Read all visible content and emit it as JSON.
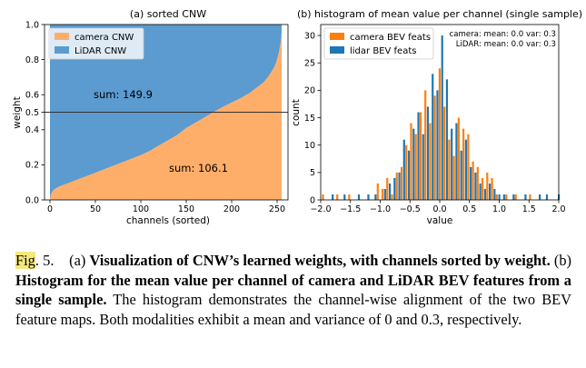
{
  "chart_data": [
    {
      "type": "area",
      "title": "(a) sorted CNW",
      "xlabel": "channels (sorted)",
      "ylabel": "weight",
      "xlim": [
        -6,
        262
      ],
      "ylim": [
        0,
        1.0
      ],
      "xticks": [
        "0",
        "50",
        "100",
        "150",
        "200",
        "250"
      ],
      "yticks": [
        "0.0",
        "0.2",
        "0.4",
        "0.5",
        "0.6",
        "0.8",
        "1.0"
      ],
      "series": [
        {
          "name": "camera CNW",
          "color": "#ffae6a",
          "x": [
            0,
            1,
            3,
            5,
            8,
            12,
            20,
            30,
            40,
            50,
            60,
            70,
            80,
            90,
            100,
            110,
            120,
            130,
            140,
            150,
            160,
            170,
            180,
            190,
            200,
            210,
            220,
            230,
            235,
            240,
            245,
            248,
            250,
            252,
            254,
            255
          ],
          "values": [
            0.0,
            0.03,
            0.05,
            0.06,
            0.07,
            0.08,
            0.095,
            0.115,
            0.135,
            0.155,
            0.175,
            0.195,
            0.215,
            0.235,
            0.255,
            0.28,
            0.31,
            0.34,
            0.37,
            0.41,
            0.44,
            0.47,
            0.5,
            0.53,
            0.555,
            0.58,
            0.61,
            0.65,
            0.67,
            0.7,
            0.74,
            0.77,
            0.8,
            0.84,
            0.9,
            0.95
          ]
        },
        {
          "name": "LiDAR CNW",
          "color": "#5b9bd0"
        }
      ],
      "hline": 0.5,
      "annotations": [
        "sum: 149.9",
        "sum: 106.1"
      ]
    },
    {
      "type": "bar",
      "title": "(b) histogram of mean value per channel (single sample)",
      "xlabel": "value",
      "ylabel": "count",
      "xlim": [
        -2.0,
        2.0
      ],
      "ylim": [
        0,
        32
      ],
      "xticks": [
        "−2.0",
        "−1.5",
        "−1.0",
        "−0.5",
        "0.0",
        "0.5",
        "1.0",
        "1.5",
        "2.0"
      ],
      "yticks": [
        "0",
        "5",
        "10",
        "15",
        "20",
        "25",
        "30"
      ],
      "bin_centers": [
        -1.94,
        -1.82,
        -1.7,
        -1.62,
        -1.5,
        -1.38,
        -1.22,
        -1.1,
        -1.02,
        -0.94,
        -0.86,
        -0.78,
        -0.7,
        -0.62,
        -0.54,
        -0.46,
        -0.38,
        -0.3,
        -0.22,
        -0.14,
        -0.06,
        0.02,
        0.1,
        0.18,
        0.26,
        0.34,
        0.42,
        0.5,
        0.58,
        0.66,
        0.74,
        0.82,
        0.9,
        0.98,
        1.06,
        1.14,
        1.22,
        1.3,
        1.42,
        1.54,
        1.66,
        1.78,
        1.98
      ],
      "series": [
        {
          "name": "camera BEV feats",
          "color": "#ff7f0e",
          "values": [
            1,
            0,
            1,
            0,
            1,
            0,
            0,
            0,
            3,
            2,
            4,
            1,
            5,
            6,
            10,
            14,
            12,
            16,
            20,
            14,
            19,
            24,
            17,
            11,
            8,
            15,
            13,
            12,
            7,
            6,
            4,
            5,
            4,
            1,
            0,
            1,
            0,
            1,
            0,
            1,
            0,
            0,
            0
          ]
        },
        {
          "name": "lidar BEV feats",
          "color": "#1f77b4",
          "values": [
            0,
            1,
            0,
            1,
            0,
            1,
            1,
            1,
            0,
            2,
            3,
            4,
            5,
            11,
            9,
            13,
            16,
            12,
            17,
            23,
            20,
            30,
            22,
            13,
            14,
            9,
            11,
            6,
            5,
            3,
            2,
            3,
            2,
            1,
            1,
            0,
            1,
            0,
            1,
            0,
            1,
            1,
            1
          ]
        }
      ],
      "stats": [
        "camera: mean: 0.0 var: 0.3",
        "LiDAR: mean: 0.0 var: 0.3"
      ]
    }
  ],
  "caption": {
    "fig_label": "Fig",
    "fig_rest": ". 5.",
    "part_a": "(a)",
    "bold_a": "Visualization of CNW’s learned weights, with channels sorted by weight.",
    "part_b": "(b)",
    "bold_b": "Histogram for the mean value per channel of camera and LiDAR BEV features from a single sample.",
    "rest": "The histogram demonstrates the channel-wise alignment of the two BEV feature maps. Both modalities exhibit a mean and variance of 0 and 0.3, respectively."
  }
}
